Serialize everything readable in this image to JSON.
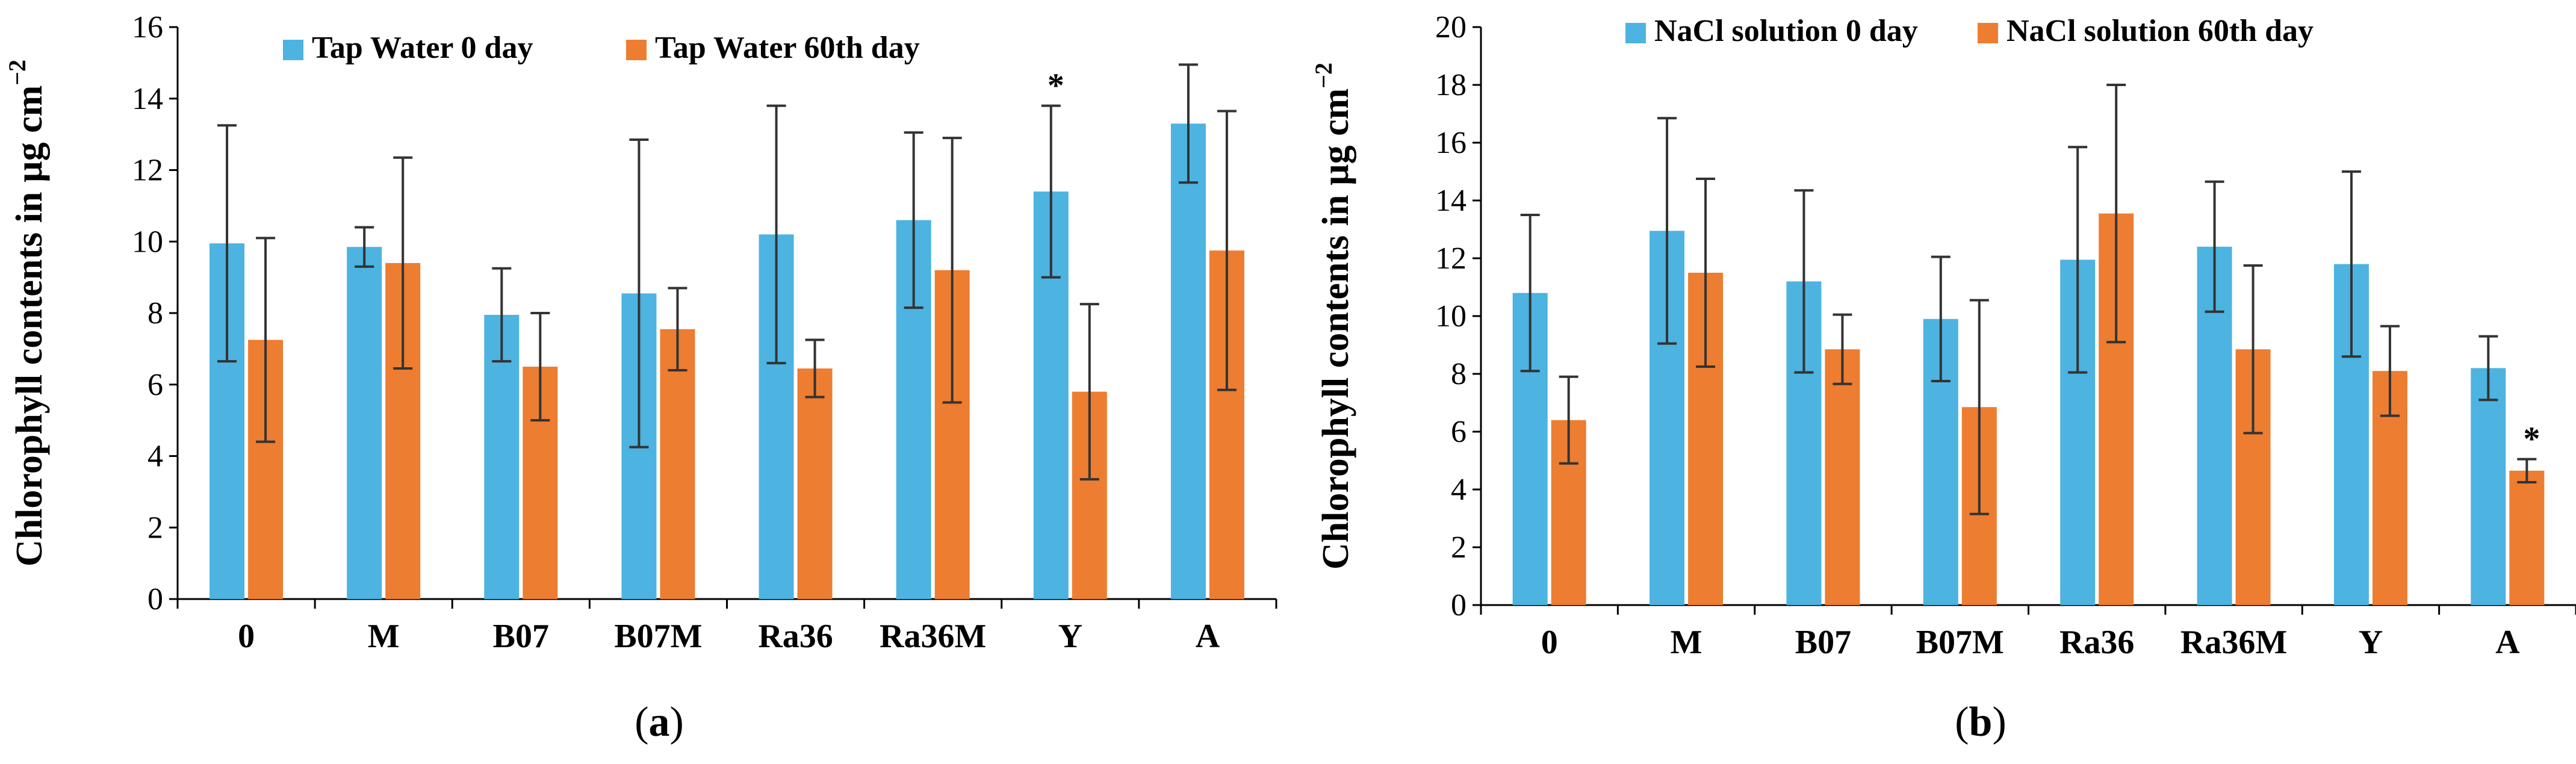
{
  "chart_data": [
    {
      "type": "bar",
      "panel_label": "a",
      "ylabel": "Chlorophyll contents in µg cm",
      "ylabel_superscript": "−2",
      "ylim": [
        0,
        16
      ],
      "yticks": [
        0,
        2,
        4,
        6,
        8,
        10,
        12,
        14,
        16
      ],
      "categories": [
        "0",
        "M",
        "B07",
        "B07M",
        "Ra36",
        "Ra36M",
        "Y",
        "A"
      ],
      "series": [
        {
          "name": "Tap Water 0 day",
          "color": "#4db3e0",
          "values": [
            9.95,
            9.85,
            7.95,
            8.55,
            10.2,
            10.6,
            11.4,
            13.3
          ],
          "errors": [
            3.3,
            0.55,
            1.3,
            4.3,
            3.6,
            2.45,
            2.4,
            1.65
          ]
        },
        {
          "name": "Tap Water 60th day",
          "color": "#ed7d31",
          "values": [
            7.25,
            9.4,
            6.5,
            7.55,
            6.45,
            9.2,
            5.8,
            9.75
          ],
          "errors": [
            2.85,
            2.95,
            1.5,
            1.15,
            0.8,
            3.7,
            2.45,
            3.9
          ]
        }
      ],
      "annotations": [
        {
          "category": "Y",
          "series": 0,
          "text": "*"
        }
      ]
    },
    {
      "type": "bar",
      "panel_label": "b",
      "ylabel": "Chlorophyll contents in µg cm",
      "ylabel_superscript": "−2",
      "ylim": [
        0,
        20
      ],
      "yticks": [
        0,
        2,
        4,
        6,
        8,
        10,
        12,
        14,
        16,
        18,
        20
      ],
      "categories": [
        "0",
        "M",
        "B07",
        "B07M",
        "Ra36",
        "Ra36M",
        "Y",
        "A"
      ],
      "series": [
        {
          "name": "NaCl solution 0 day",
          "color": "#4db3e0",
          "values": [
            10.8,
            12.95,
            11.2,
            9.9,
            11.95,
            12.4,
            11.8,
            8.2
          ],
          "errors": [
            2.7,
            3.9,
            3.15,
            2.15,
            3.9,
            2.25,
            3.2,
            1.1
          ]
        },
        {
          "name": "NaCl solution 60th day",
          "color": "#ed7d31",
          "values": [
            6.4,
            11.5,
            8.85,
            6.85,
            13.55,
            8.85,
            8.1,
            4.65
          ],
          "errors": [
            1.5,
            3.25,
            1.2,
            3.7,
            4.45,
            2.9,
            1.55,
            0.4
          ]
        }
      ],
      "annotations": [
        {
          "category": "A",
          "series": 1,
          "text": "*"
        }
      ]
    }
  ]
}
